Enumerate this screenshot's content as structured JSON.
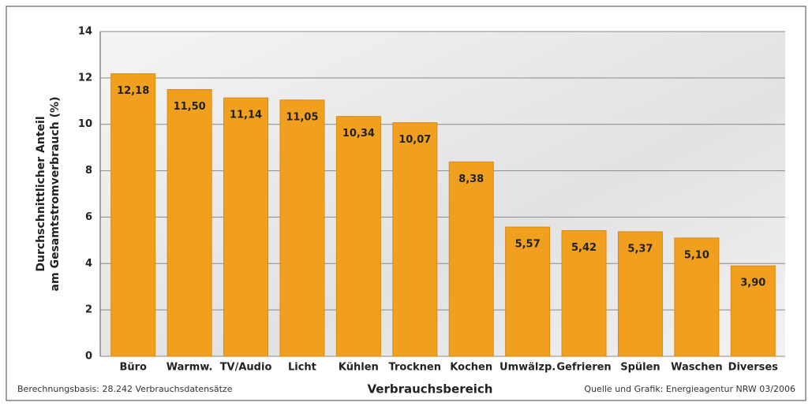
{
  "chart_data": {
    "type": "bar",
    "categories": [
      "Büro",
      "Warmw.",
      "TV/Audio",
      "Licht",
      "Kühlen",
      "Trocknen",
      "Kochen",
      "Umwälzp.",
      "Gefrieren",
      "Spülen",
      "Waschen",
      "Diverses"
    ],
    "values": [
      12.18,
      11.5,
      11.14,
      11.05,
      10.34,
      10.07,
      8.38,
      5.57,
      5.42,
      5.37,
      5.1,
      3.9
    ],
    "value_labels": [
      "12,18",
      "11,50",
      "11,14",
      "11,05",
      "10,34",
      "10,07",
      "8,38",
      "5,57",
      "5,42",
      "5,37",
      "5,10",
      "3,90"
    ],
    "color": "#f0a01e",
    "ylim": [
      0,
      14
    ],
    "yticks": [
      0,
      2,
      4,
      6,
      8,
      10,
      12,
      14
    ],
    "grid": true,
    "ylabel": [
      "Durchschnittlicher Anteil",
      "am Gesamtstromverbrauch (%)"
    ],
    "xlabel": "Verbrauchsbereich",
    "note_left": "Berechnungsbasis: 28.242 Verbrauchsdatensätze",
    "note_right": "Quelle und Grafik: Energieagentur NRW 03/2006"
  }
}
